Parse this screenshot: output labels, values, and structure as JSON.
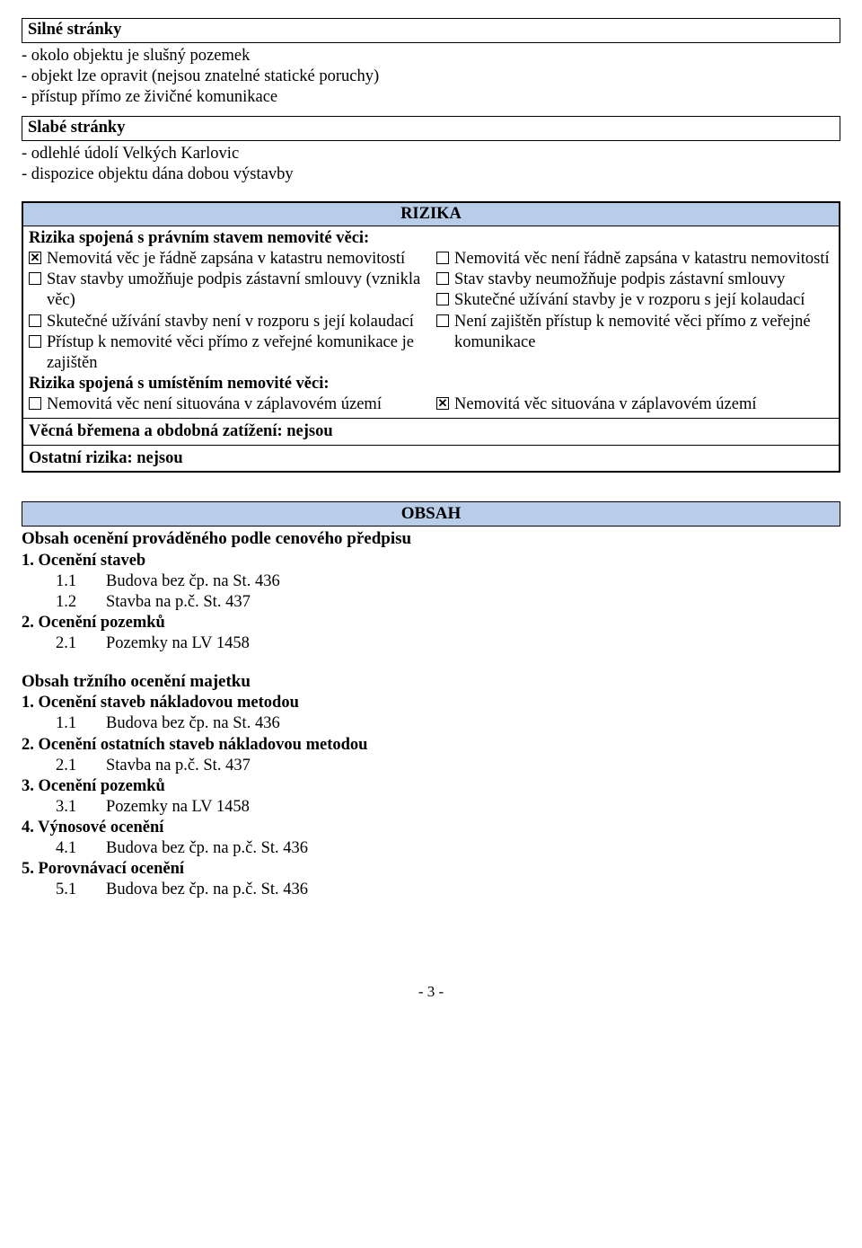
{
  "colors": {
    "headerBg": "#b7cde8",
    "border": "#000000",
    "text": "#000000",
    "pageBg": "#ffffff"
  },
  "fonts": {
    "family": "Times New Roman",
    "body_pt": 14,
    "header_pt": 14.5
  },
  "silne": {
    "title": "Silné stránky",
    "items": [
      "- okolo objektu je slušný pozemek",
      "- objekt lze opravit (nejsou znatelné statické poruchy)",
      "- přístup přímo ze živičné komunikace"
    ]
  },
  "slabe": {
    "title": "Slabé stránky",
    "items": [
      "- odlehlé údolí Velkých Karlovic",
      "- dispozice objektu dána dobou výstavby"
    ]
  },
  "rizika": {
    "title": "RIZIKA",
    "pravni_title": "Rizika spojená s právním stavem nemovité věci:",
    "pravni_left": [
      {
        "checked": true,
        "text": "Nemovitá věc je řádně zapsána v katastru nemovitostí"
      },
      {
        "checked": false,
        "text": "Stav stavby umožňuje podpis zástavní smlouvy (vznikla věc)"
      },
      {
        "checked": false,
        "text": "Skutečné užívání stavby není v rozporu s její kolaudací"
      },
      {
        "checked": false,
        "text": "Přístup k nemovité věci přímo z veřejné komunikace je zajištěn"
      }
    ],
    "pravni_right": [
      {
        "checked": false,
        "text": "Nemovitá věc není řádně zapsána v katastru nemovitostí"
      },
      {
        "checked": false,
        "text": "Stav stavby neumožňuje podpis zástavní smlouvy"
      },
      {
        "checked": false,
        "text": "Skutečné užívání stavby je v rozporu s její kolaudací"
      },
      {
        "checked": false,
        "text": "Není zajištěn přístup k nemovité věci přímo z veřejné komunikace"
      }
    ],
    "umisteni_title": "Rizika spojená s umístěním nemovité věci:",
    "umisteni_left": [
      {
        "checked": false,
        "text": "Nemovitá věc není situována v záplavovém území"
      }
    ],
    "umisteni_right": [
      {
        "checked": true,
        "text": "Nemovitá věc situována v záplavovém území"
      }
    ],
    "bremena": "Věcná břemena a obdobná zatížení: nejsou",
    "ostatni": "Ostatní rizika: nejsou"
  },
  "obsah": {
    "title": "OBSAH",
    "block1": {
      "heading": "Obsah ocenění prováděného podle cenového předpisu",
      "sections": [
        {
          "title": "1. Ocenění staveb",
          "items": [
            {
              "num": "1.1",
              "label": "Budova bez čp. na St. 436"
            },
            {
              "num": "1.2",
              "label": "Stavba na p.č. St. 437"
            }
          ]
        },
        {
          "title": "2. Ocenění pozemků",
          "items": [
            {
              "num": "2.1",
              "label": "Pozemky na LV 1458"
            }
          ]
        }
      ]
    },
    "block2": {
      "heading": "Obsah tržního ocenění majetku",
      "sections": [
        {
          "title": "1. Ocenění staveb nákladovou metodou",
          "items": [
            {
              "num": "1.1",
              "label": "Budova bez čp. na St. 436"
            }
          ]
        },
        {
          "title": "2. Ocenění ostatních staveb nákladovou metodou",
          "items": [
            {
              "num": "2.1",
              "label": "Stavba na p.č. St. 437"
            }
          ]
        },
        {
          "title": "3. Ocenění pozemků",
          "items": [
            {
              "num": "3.1",
              "label": "Pozemky na LV 1458"
            }
          ]
        },
        {
          "title": "4. Výnosové ocenění",
          "items": [
            {
              "num": "4.1",
              "label": "Budova bez čp. na p.č. St. 436"
            }
          ]
        },
        {
          "title": "5. Porovnávací ocenění",
          "items": [
            {
              "num": "5.1",
              "label": "Budova bez čp. na p.č. St. 436"
            }
          ]
        }
      ]
    }
  },
  "pager": "- 3 -"
}
